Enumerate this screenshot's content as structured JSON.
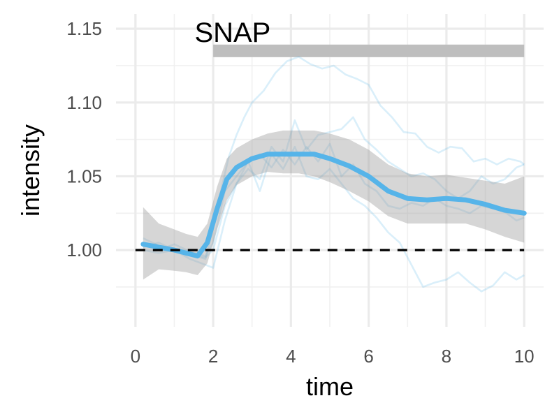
{
  "chart_data": {
    "type": "line",
    "xlabel": "time",
    "ylabel": "intensity",
    "xlim": [
      -0.5,
      10.5
    ],
    "ylim": [
      0.948,
      1.16
    ],
    "grid": true,
    "x_ticks": [
      0,
      2,
      4,
      6,
      8,
      10
    ],
    "x_tick_labels": [
      "0",
      "2",
      "4",
      "6",
      "8",
      "10"
    ],
    "y_ticks": [
      1.0,
      1.05,
      1.1,
      1.15
    ],
    "y_tick_labels": [
      "1.00",
      "1.05",
      "1.10",
      "1.15"
    ],
    "reference_line": {
      "y": 1.0,
      "style": "dashed",
      "color": "#000000"
    },
    "annotation": {
      "label": "SNAP",
      "x_start": 2,
      "x_end": 10,
      "y": 1.135,
      "color": "#bebebe"
    },
    "colors": {
      "mean": "#56b4e9",
      "ribbon": "#999999",
      "individual": "#56b4e9"
    },
    "series": [
      {
        "kind": "smooth-mean",
        "x": [
          0.2,
          0.6,
          1.0,
          1.3,
          1.6,
          1.85,
          2.1,
          2.35,
          2.6,
          3.0,
          3.4,
          3.8,
          4.2,
          4.6,
          5.0,
          5.5,
          6.0,
          6.5,
          7.0,
          7.5,
          8.0,
          8.5,
          9.0,
          9.5,
          10.0
        ],
        "y": [
          1.004,
          1.002,
          1.0,
          0.998,
          0.996,
          1.005,
          1.028,
          1.048,
          1.056,
          1.062,
          1.065,
          1.065,
          1.065,
          1.065,
          1.062,
          1.057,
          1.05,
          1.04,
          1.035,
          1.034,
          1.035,
          1.034,
          1.031,
          1.027,
          1.025
        ],
        "lower": [
          0.98,
          0.987,
          0.986,
          0.985,
          0.983,
          0.991,
          1.014,
          1.034,
          1.044,
          1.05,
          1.053,
          1.052,
          1.052,
          1.05,
          1.046,
          1.04,
          1.033,
          1.023,
          1.018,
          1.018,
          1.018,
          1.018,
          1.014,
          1.009,
          1.005
        ],
        "upper": [
          1.029,
          1.018,
          1.014,
          1.011,
          1.009,
          1.018,
          1.043,
          1.062,
          1.069,
          1.075,
          1.079,
          1.081,
          1.081,
          1.081,
          1.079,
          1.075,
          1.068,
          1.058,
          1.052,
          1.05,
          1.051,
          1.049,
          1.047,
          1.045,
          1.05
        ]
      },
      {
        "kind": "individual",
        "x": [
          0.2,
          0.6,
          1.0,
          1.4,
          1.8,
          2.0,
          2.2,
          2.4,
          2.6,
          2.8,
          3.0,
          3.3,
          3.6,
          3.9,
          4.2,
          4.5,
          4.8,
          5.1,
          5.4,
          5.7,
          6.0,
          6.3,
          6.6,
          6.9,
          7.2,
          7.5,
          7.8,
          8.1,
          8.4,
          8.7,
          9.0,
          9.3,
          9.6,
          9.9,
          10.0
        ],
        "y": [
          1.008,
          1.003,
          0.999,
          0.997,
          0.994,
          1.015,
          1.04,
          1.063,
          1.078,
          1.09,
          1.1,
          1.108,
          1.12,
          1.128,
          1.131,
          1.126,
          1.123,
          1.125,
          1.119,
          1.116,
          1.112,
          1.098,
          1.09,
          1.08,
          1.079,
          1.07,
          1.066,
          1.07,
          1.069,
          1.06,
          1.062,
          1.058,
          1.062,
          1.06,
          1.058
        ]
      },
      {
        "kind": "individual",
        "x": [
          0.2,
          0.6,
          1.0,
          1.4,
          1.8,
          2.0,
          2.3,
          2.6,
          2.9,
          3.2,
          3.5,
          3.8,
          4.1,
          4.4,
          4.7,
          5.0,
          5.3,
          5.6,
          5.9,
          6.2,
          6.5,
          6.8,
          7.1,
          7.4,
          7.7,
          8.0,
          8.3,
          8.6,
          8.9,
          9.2,
          9.5,
          9.8,
          10.0
        ],
        "y": [
          1.002,
          1.005,
          1.0,
          0.998,
          0.995,
          1.0,
          1.03,
          1.045,
          1.055,
          1.048,
          1.07,
          1.06,
          1.088,
          1.068,
          1.078,
          1.08,
          1.082,
          1.09,
          1.075,
          1.068,
          1.06,
          1.055,
          1.05,
          1.052,
          1.048,
          1.04,
          1.035,
          1.04,
          1.05,
          1.045,
          1.048,
          1.056,
          1.058
        ]
      },
      {
        "kind": "individual",
        "x": [
          0.2,
          0.6,
          1.0,
          1.4,
          1.8,
          2.0,
          2.3,
          2.6,
          2.9,
          3.2,
          3.5,
          3.8,
          4.1,
          4.4,
          4.7,
          5.0,
          5.3,
          5.6,
          5.9,
          6.2,
          6.5,
          6.8,
          7.1,
          7.4,
          7.7,
          8.0,
          8.3,
          8.6,
          8.9,
          9.2,
          9.5,
          9.8,
          10.0
        ],
        "y": [
          1.005,
          1.0,
          1.004,
          0.999,
          0.996,
          1.005,
          1.04,
          1.05,
          1.06,
          1.065,
          1.056,
          1.068,
          1.058,
          1.07,
          1.06,
          1.072,
          1.05,
          1.058,
          1.045,
          1.04,
          1.03,
          1.028,
          1.032,
          1.03,
          1.035,
          1.03,
          1.028,
          1.025,
          1.03,
          1.028,
          1.026,
          1.02,
          1.022
        ]
      },
      {
        "kind": "individual",
        "x": [
          0.2,
          0.6,
          1.0,
          1.4,
          1.8,
          2.0,
          2.3,
          2.6,
          2.9,
          3.2,
          3.5,
          3.8,
          4.1,
          4.4,
          4.7,
          5.0,
          5.3,
          5.6,
          5.9,
          6.2,
          6.5,
          6.8,
          7.1,
          7.4,
          7.7,
          8.0,
          8.3,
          8.6,
          8.9,
          9.2,
          9.5,
          9.8,
          10.0
        ],
        "y": [
          1.0,
          0.998,
          1.0,
          0.994,
          0.99,
          0.988,
          1.02,
          1.045,
          1.06,
          1.04,
          1.065,
          1.055,
          1.07,
          1.05,
          1.048,
          1.055,
          1.045,
          1.035,
          1.03,
          1.022,
          1.012,
          1.005,
          0.99,
          0.975,
          0.978,
          0.98,
          0.985,
          0.978,
          0.972,
          0.976,
          0.985,
          0.98,
          0.983
        ]
      }
    ]
  }
}
